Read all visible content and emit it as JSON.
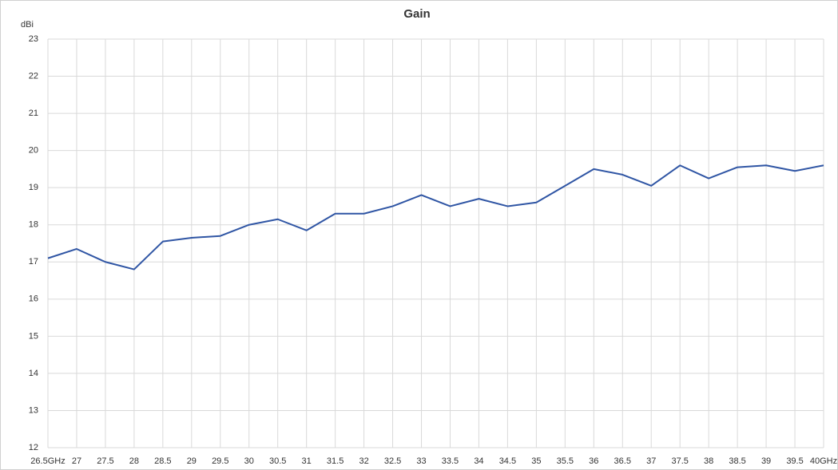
{
  "chart_data": {
    "type": "line",
    "title": "Gain",
    "y_label": "dBi",
    "categories": [
      "26.5GHz",
      "27",
      "27.5",
      "28",
      "28.5",
      "29",
      "29.5",
      "30",
      "30.5",
      "31",
      "31.5",
      "32",
      "32.5",
      "33",
      "33.5",
      "34",
      "34.5",
      "35",
      "35.5",
      "36",
      "36.5",
      "37",
      "37.5",
      "38",
      "38.5",
      "39",
      "39.5",
      "40GHz"
    ],
    "values": [
      17.1,
      17.35,
      17.0,
      16.8,
      17.55,
      17.65,
      17.7,
      18.0,
      18.15,
      17.85,
      18.3,
      18.3,
      18.5,
      18.8,
      18.5,
      18.7,
      18.5,
      18.6,
      19.05,
      19.5,
      19.35,
      19.05,
      19.6,
      19.25,
      19.55,
      19.6,
      19.45,
      19.6
    ],
    "color": "#2f55a4",
    "ylim": [
      12,
      23
    ],
    "yticks": [
      12,
      13,
      14,
      15,
      16,
      17,
      18,
      19,
      20,
      21,
      22,
      23
    ],
    "grid": true
  }
}
